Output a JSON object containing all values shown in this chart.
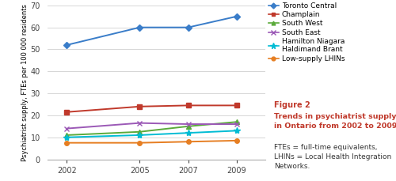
{
  "years": [
    2002,
    2005,
    2007,
    2009
  ],
  "series": [
    {
      "label": "Toronto Central",
      "color": "#3a7dc9",
      "marker": "D",
      "markersize": 4,
      "values": [
        52,
        60,
        60,
        65
      ]
    },
    {
      "label": "Champlain",
      "color": "#c0392b",
      "marker": "s",
      "markersize": 4,
      "values": [
        21.5,
        24,
        24.5,
        24.5
      ]
    },
    {
      "label": "South West",
      "color": "#5aaa3a",
      "marker": "^",
      "markersize": 4,
      "values": [
        11,
        12.5,
        15,
        17
      ]
    },
    {
      "label": "South East",
      "color": "#9b59b6",
      "marker": "x",
      "markersize": 5,
      "values": [
        14,
        16.5,
        16,
        16
      ]
    },
    {
      "label": "Hamilton Niagara\nHaldimand Brant",
      "color": "#00bcd4",
      "marker": "*",
      "markersize": 6,
      "values": [
        10,
        11,
        12,
        13
      ]
    },
    {
      "label": "Low-supply LHINs",
      "color": "#e67e22",
      "marker": "o",
      "markersize": 4,
      "values": [
        7.5,
        7.5,
        8,
        8.5
      ]
    }
  ],
  "xlim": [
    2001.2,
    2010.2
  ],
  "ylim": [
    0,
    70
  ],
  "yticks": [
    0,
    10,
    20,
    30,
    40,
    50,
    60,
    70
  ],
  "xticks": [
    2002,
    2005,
    2007,
    2009
  ],
  "ylabel": "Psychiatrist supply, FTEs per 100 000 residents",
  "ylabel_fontsize": 6.0,
  "figure_caption_title": "Figure 2",
  "figure_caption_bold": "Trends in psychiatrist supply\nin Ontario from 2002 to 2009.",
  "figure_caption_normal": "FTEs = full-time equivalents,\nLHINs = Local Health Integration\nNetworks.",
  "caption_color": "#c0392b",
  "bg_color": "#ffffff",
  "grid_color": "#d0d0d0",
  "legend_fontsize": 6.5,
  "tick_fontsize": 7
}
